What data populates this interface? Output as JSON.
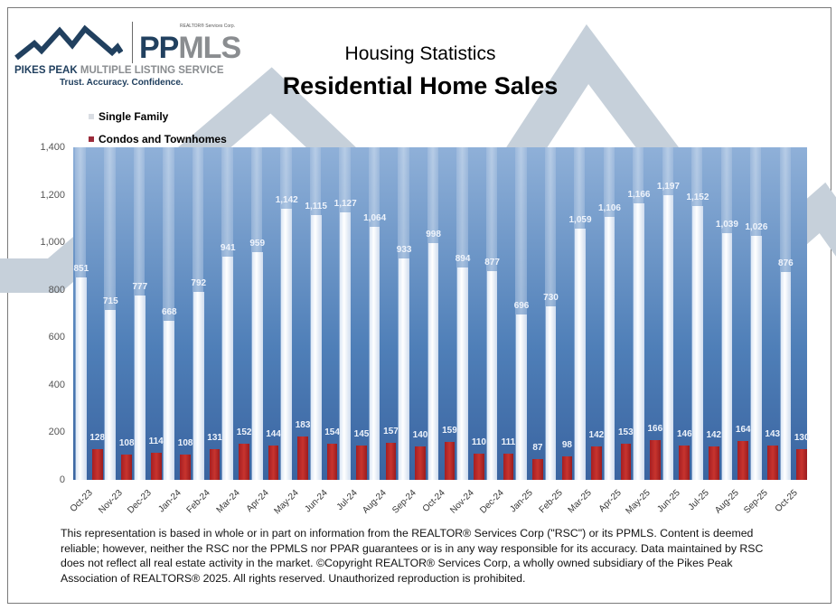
{
  "header": {
    "logo": {
      "corp": "REALTOR® Services Corp.",
      "brand_pp": "PP",
      "brand_mls": "MLS",
      "name_pikes": "PIKES PEAK",
      "name_rest": " MULTIPLE LISTING SERVICE",
      "tagline": "Trust. Accuracy. Confidence."
    },
    "title": "Housing Statistics",
    "subtitle": "Residential Home Sales"
  },
  "colors": {
    "single_family": "#e8eef7",
    "condos": "#b52a2a",
    "plot_top": "#8fb0d8",
    "plot_bottom": "#3a64a0",
    "brand_navy": "#21405f",
    "brand_gray": "#8a8d90"
  },
  "legend": [
    {
      "label": "Single Family",
      "color": "#d9dde3"
    },
    {
      "label": "Condos and Townhomes",
      "color": "#9b2b3a"
    }
  ],
  "chart_data": {
    "type": "bar",
    "title": "Residential Home Sales",
    "subtitle": "Housing Statistics",
    "xlabel": "",
    "ylabel": "",
    "ylim": [
      0,
      1400
    ],
    "yticks": [
      "0",
      "200",
      "400",
      "600",
      "800",
      "1,000",
      "1,200",
      "1,400"
    ],
    "grid": false,
    "legend_position": "top-left",
    "categories": [
      "Oct-23",
      "Nov-23",
      "Dec-23",
      "Jan-24",
      "Feb-24",
      "Mar-24",
      "Apr-24",
      "May-24",
      "Jun-24",
      "Jul-24",
      "Aug-24",
      "Sep-24",
      "Oct-24",
      "Nov-24",
      "Dec-24",
      "Jan-25",
      "Feb-25",
      "Mar-25",
      "Apr-25",
      "May-25",
      "Jun-25",
      "Jul-25",
      "Aug-25",
      "Sep-25",
      "Oct-25"
    ],
    "series": [
      {
        "name": "Single Family",
        "values": [
          851,
          715,
          777,
          668,
          792,
          941,
          959,
          1142,
          1115,
          1127,
          1064,
          933,
          998,
          894,
          877,
          696,
          730,
          1059,
          1106,
          1166,
          1197,
          1152,
          1039,
          1026,
          876
        ],
        "labels": [
          "851",
          "715",
          "777",
          "668",
          "792",
          "941",
          "959",
          "1,142",
          "1,115",
          "1,127",
          "1,064",
          "933",
          "998",
          "894",
          "877",
          "696",
          "730",
          "1,059",
          "1,106",
          "1,166",
          "1,197",
          "1,152",
          "1,039",
          "1,026",
          "876"
        ]
      },
      {
        "name": "Condos and Townhomes",
        "values": [
          128,
          108,
          114,
          108,
          131,
          152,
          144,
          183,
          154,
          145,
          157,
          140,
          159,
          110,
          111,
          87,
          98,
          142,
          153,
          166,
          146,
          142,
          164,
          143,
          130
        ],
        "labels": [
          "128",
          "108",
          "114",
          "108",
          "131",
          "152",
          "144",
          "183",
          "154",
          "145",
          "157",
          "140",
          "159",
          "110",
          "111",
          "87",
          "98",
          "142",
          "153",
          "166",
          "146",
          "142",
          "164",
          "143",
          "130"
        ]
      }
    ]
  },
  "footer": {
    "disclaimer": "This representation is based in whole or in part on information from the REALTOR® Services Corp (\"RSC\") or its PPMLS. Content is deemed reliable; however, neither the RSC nor the PPMLS nor PPAR guarantees or is in any way responsible for its accuracy. Data maintained by RSC does not reflect all real estate activity in the market. ©Copyright REALTOR® Services Corp, a wholly owned subsidiary of the Pikes Peak Association of REALTORS® 2025. All rights reserved.  Unauthorized reproduction is prohibited."
  }
}
